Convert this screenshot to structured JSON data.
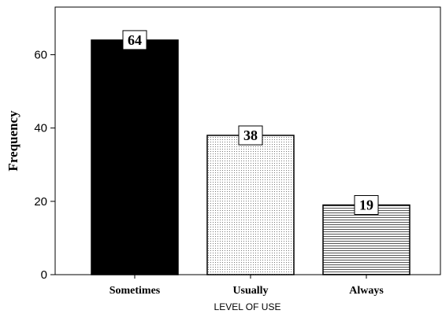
{
  "chart_data": {
    "type": "bar",
    "categories": [
      "Sometimes",
      "Usually",
      "Always"
    ],
    "values": [
      64,
      38,
      19
    ],
    "data_labels": [
      "64",
      "38",
      "19"
    ],
    "title": "",
    "xlabel": "LEVEL OF USE",
    "ylabel": "Frequency",
    "ylim": [
      0,
      73
    ],
    "yticks": [
      0,
      20,
      40,
      60
    ],
    "ytick_labels": [
      "0",
      "20",
      "40",
      "60"
    ],
    "grid": false,
    "legend": "none",
    "bar_fills": [
      "solid-black",
      "dotted",
      "horizontal-lines"
    ],
    "colors": {
      "bar_stroke": "#000000",
      "sometimes_fill": "#000000",
      "pattern_ink": "#666666",
      "background": "#ffffff"
    }
  }
}
